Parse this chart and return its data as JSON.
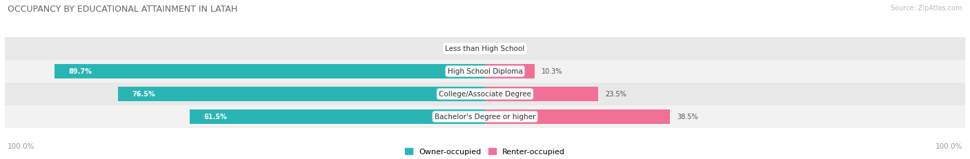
{
  "title": "OCCUPANCY BY EDUCATIONAL ATTAINMENT IN LATAH",
  "source": "Source: ZipAtlas.com",
  "categories": [
    "Less than High School",
    "High School Diploma",
    "College/Associate Degree",
    "Bachelor's Degree or higher"
  ],
  "owner_values": [
    0.0,
    89.7,
    76.5,
    61.5
  ],
  "renter_values": [
    0.0,
    10.3,
    23.5,
    38.5
  ],
  "owner_color": "#2ab5b5",
  "renter_color": "#f07096",
  "row_bg_even": "#f2f2f2",
  "row_bg_odd": "#e8e8e8",
  "axis_label_left": "100.0%",
  "axis_label_right": "100.0%",
  "legend_owner": "Owner-occupied",
  "legend_renter": "Renter-occupied",
  "total": 100.0,
  "figwidth": 14.06,
  "figheight": 2.32,
  "dpi": 100
}
